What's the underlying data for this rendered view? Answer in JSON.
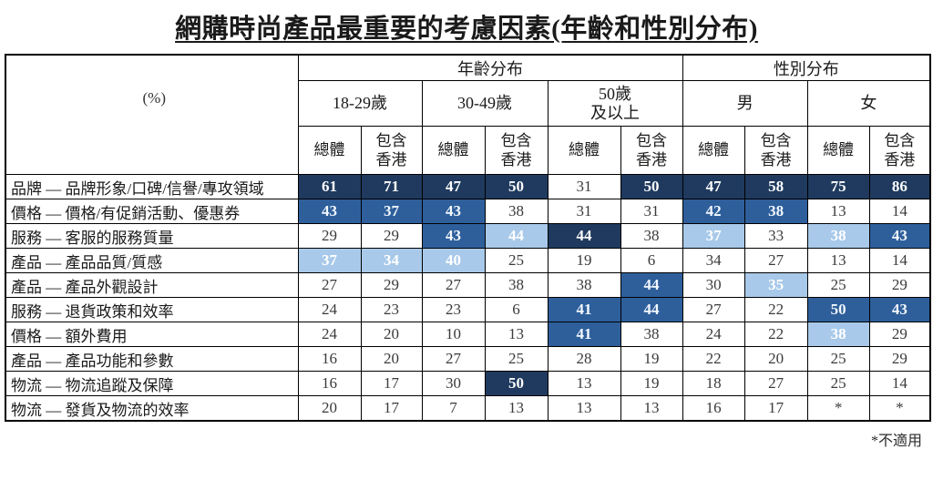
{
  "title": "網購時尚產品最重要的考慮因素(年齡和性別分布)",
  "footnote": "*不適用",
  "colors": {
    "dark": "#1F3A5E",
    "medium": "#2E5F9B",
    "light": "#A8C9E9"
  },
  "table": {
    "corner_label": "(%)",
    "group_headers": [
      {
        "label": "年齡分布",
        "span": 6
      },
      {
        "label": "性別分布",
        "span": 4
      }
    ],
    "subgroups": [
      {
        "label": "18-29歲",
        "span": 2
      },
      {
        "label": "30-49歲",
        "span": 2
      },
      {
        "label": "50歲\n及以上",
        "span": 2
      },
      {
        "label": "男",
        "span": 2
      },
      {
        "label": "女",
        "span": 2
      }
    ],
    "subcols": [
      "總體",
      "包含\n香港",
      "總體",
      "包含\n香港",
      "總體",
      "包含\n香港",
      "總體",
      "包含\n香港",
      "總體",
      "包含\n香港"
    ]
  },
  "chart_data": {
    "type": "table",
    "title": "網購時尚產品最重要的考慮因素(年齡和性別分布)",
    "unit": "(%)",
    "column_groups": [
      "年齡分布",
      "性別分布"
    ],
    "columns": [
      "18-29歲 總體",
      "18-29歲 包含香港",
      "30-49歲 總體",
      "30-49歲 包含香港",
      "50歲及以上 總體",
      "50歲及以上 包含香港",
      "男 總體",
      "男 包含香港",
      "女 總體",
      "女 包含香港"
    ],
    "highlight_legend": {
      "d": "dark-navy",
      "m": "medium-blue",
      "l": "light-blue",
      "": "white"
    },
    "rows": [
      {
        "label": "品牌 — 品牌形象/口碑/信譽/專攻領域",
        "values": [
          61,
          71,
          47,
          50,
          31,
          50,
          47,
          58,
          75,
          86
        ],
        "highlight": [
          "d",
          "d",
          "d",
          "d",
          "",
          "d",
          "d",
          "d",
          "d",
          "d"
        ]
      },
      {
        "label": "價格 — 價格/有促銷活動、優惠券",
        "values": [
          43,
          37,
          43,
          38,
          31,
          31,
          42,
          38,
          13,
          14
        ],
        "highlight": [
          "m",
          "m",
          "m",
          "",
          "",
          "",
          "m",
          "m",
          "",
          ""
        ]
      },
      {
        "label": "服務 — 客服的服務質量",
        "values": [
          29,
          29,
          43,
          44,
          44,
          38,
          37,
          33,
          38,
          43
        ],
        "highlight": [
          "",
          "",
          "m",
          "l",
          "d",
          "",
          "l",
          "",
          "l",
          "m"
        ]
      },
      {
        "label": "產品 — 產品品質/質感",
        "values": [
          37,
          34,
          40,
          25,
          19,
          6,
          34,
          27,
          13,
          14
        ],
        "highlight": [
          "l",
          "l",
          "l",
          "",
          "",
          "",
          "",
          "",
          "",
          ""
        ]
      },
      {
        "label": "產品 — 產品外觀設計",
        "values": [
          27,
          29,
          27,
          38,
          38,
          44,
          30,
          35,
          25,
          29
        ],
        "highlight": [
          "",
          "",
          "",
          "",
          "",
          "m",
          "",
          "l",
          "",
          ""
        ]
      },
      {
        "label": "服務 — 退貨政策和效率",
        "values": [
          24,
          23,
          23,
          6,
          41,
          44,
          27,
          22,
          50,
          43
        ],
        "highlight": [
          "",
          "",
          "",
          "",
          "m",
          "m",
          "",
          "",
          "m",
          "m"
        ]
      },
      {
        "label": "價格 — 額外費用",
        "values": [
          24,
          20,
          10,
          13,
          41,
          38,
          24,
          22,
          38,
          29
        ],
        "highlight": [
          "",
          "",
          "",
          "",
          "m",
          "",
          "",
          "",
          "l",
          ""
        ]
      },
      {
        "label": "產品 — 產品功能和參數",
        "values": [
          16,
          20,
          27,
          25,
          28,
          19,
          22,
          20,
          25,
          29
        ],
        "highlight": [
          "",
          "",
          "",
          "",
          "",
          "",
          "",
          "",
          "",
          ""
        ]
      },
      {
        "label": "物流 — 物流追蹤及保障",
        "values": [
          16,
          17,
          30,
          50,
          13,
          19,
          18,
          27,
          25,
          14
        ],
        "highlight": [
          "",
          "",
          "",
          "d",
          "",
          "",
          "",
          "",
          "",
          ""
        ]
      },
      {
        "label": "物流 — 發貨及物流的效率",
        "values": [
          20,
          17,
          7,
          13,
          13,
          13,
          16,
          17,
          "*",
          "*"
        ],
        "highlight": [
          "",
          "",
          "",
          "",
          "",
          "",
          "",
          "",
          "",
          ""
        ]
      }
    ],
    "footnote": "*不適用"
  }
}
